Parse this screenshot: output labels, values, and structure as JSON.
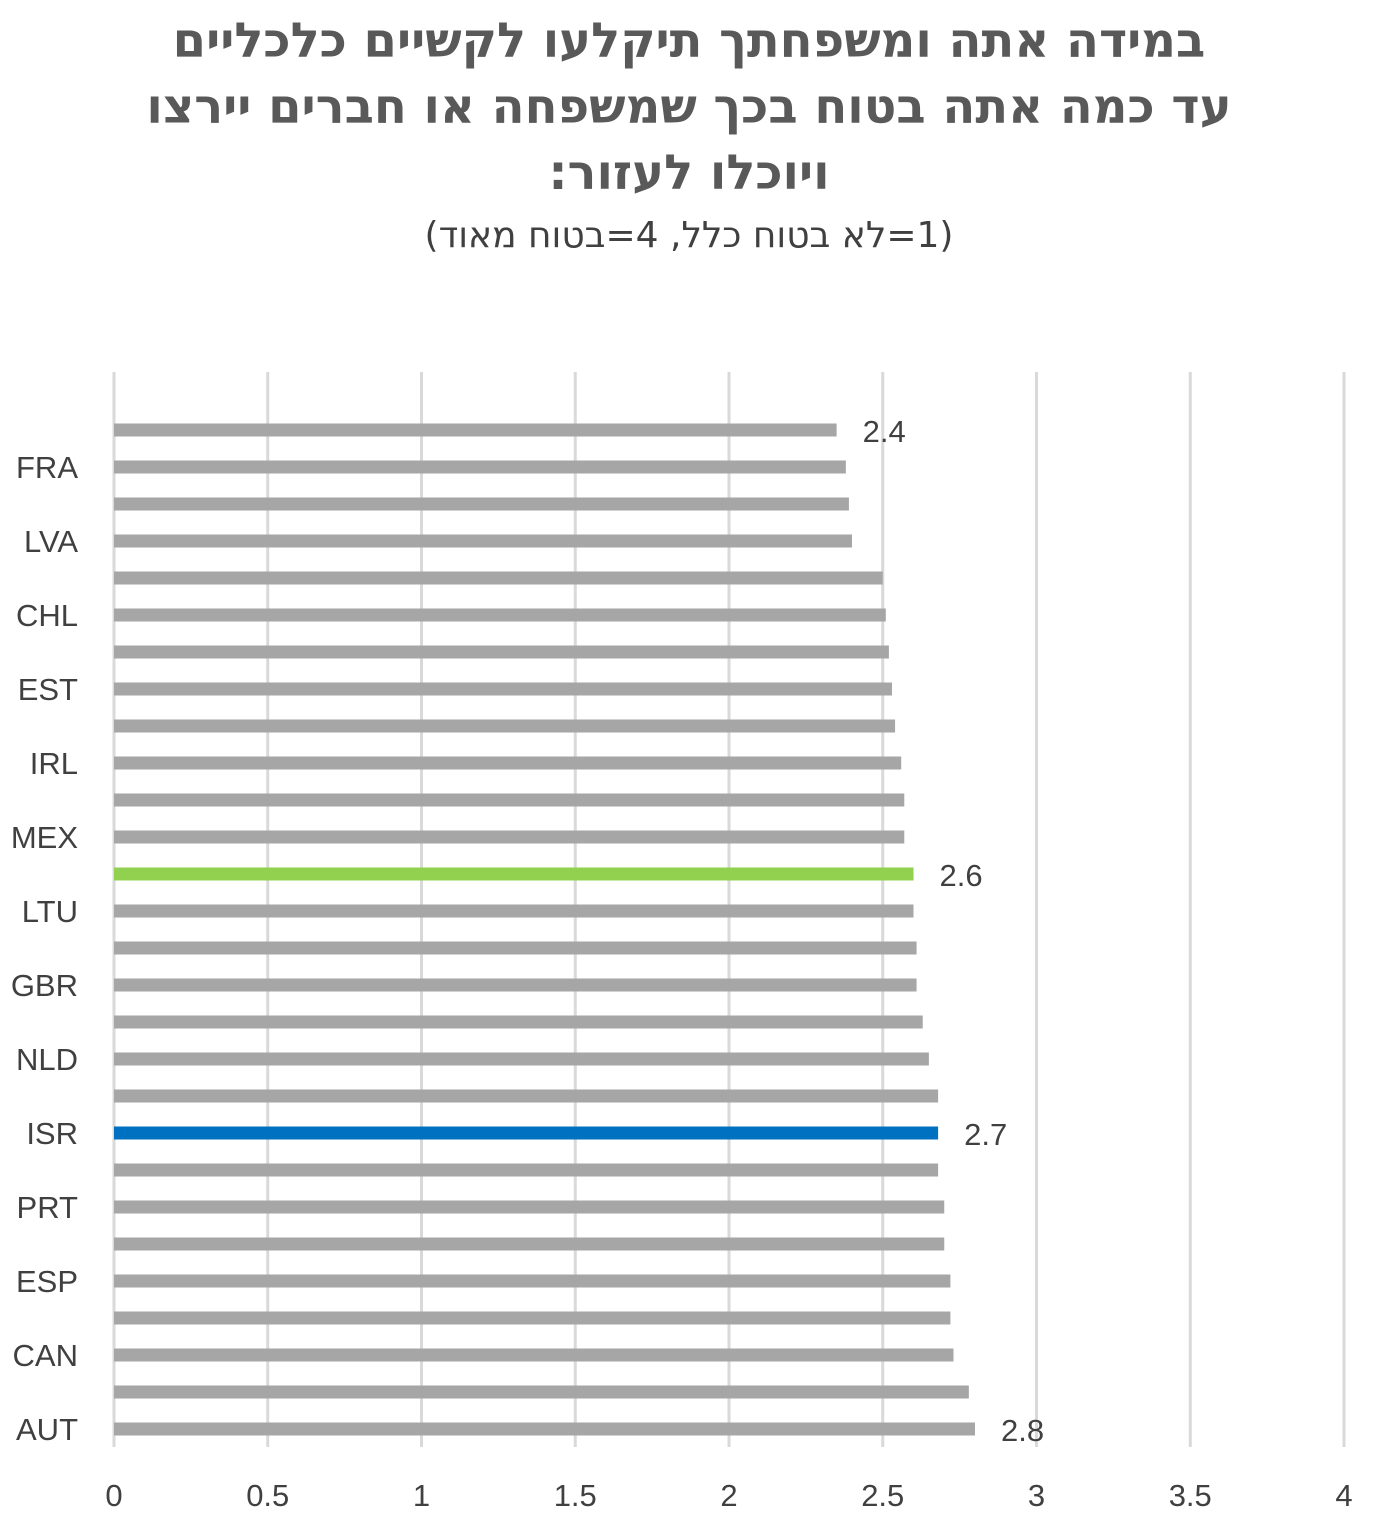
{
  "chart_data": {
    "type": "bar",
    "orientation": "horizontal",
    "title_lines": [
      "במידה אתה ומשפחתך תיקלעו לקשיים כלכליים",
      "עד כמה אתה בטוח בכך שמשפחה או חברים יירצו",
      "ויוכלו לעזור:"
    ],
    "subtitle": "(1=לא בטוח כלל, 4=בטוח מאוד)",
    "xlim": [
      0,
      4
    ],
    "x_ticks": [
      "0",
      "0.5",
      "1",
      "1.5",
      "2",
      "2.5",
      "3",
      "3.5",
      "4"
    ],
    "grid": "vertical",
    "categories": [
      "",
      "FRA",
      "",
      "LVA",
      "",
      "CHL",
      "",
      "EST",
      "",
      "IRL",
      "",
      "MEX",
      "",
      "LTU",
      "",
      "GBR",
      "",
      "NLD",
      "",
      "ISR",
      "",
      "PRT",
      "",
      "ESP",
      "",
      "CAN",
      "",
      "AUT"
    ],
    "values": [
      2.35,
      2.38,
      2.39,
      2.4,
      2.5,
      2.51,
      2.52,
      2.53,
      2.54,
      2.56,
      2.57,
      2.57,
      2.6,
      2.6,
      2.61,
      2.61,
      2.63,
      2.65,
      2.68,
      2.68,
      2.68,
      2.7,
      2.7,
      2.72,
      2.72,
      2.73,
      2.78,
      2.8
    ],
    "data_labels": [
      "2.4",
      "",
      "",
      "",
      "",
      "",
      "",
      "",
      "",
      "",
      "",
      "",
      "2.6",
      "",
      "",
      "",
      "",
      "",
      "",
      "2.7",
      "",
      "",
      "",
      "",
      "",
      "",
      "",
      "2.8"
    ],
    "colors": {
      "default": "#A6A6A6",
      "highlight_green": "#92D050",
      "highlight_blue": "#0070C0",
      "grid": "#D9D9D9"
    },
    "bar_colors": [
      "default",
      "default",
      "default",
      "default",
      "default",
      "default",
      "default",
      "default",
      "default",
      "default",
      "default",
      "default",
      "highlight_green",
      "default",
      "default",
      "default",
      "default",
      "default",
      "default",
      "highlight_blue",
      "default",
      "default",
      "default",
      "default",
      "default",
      "default",
      "default",
      "default"
    ]
  }
}
